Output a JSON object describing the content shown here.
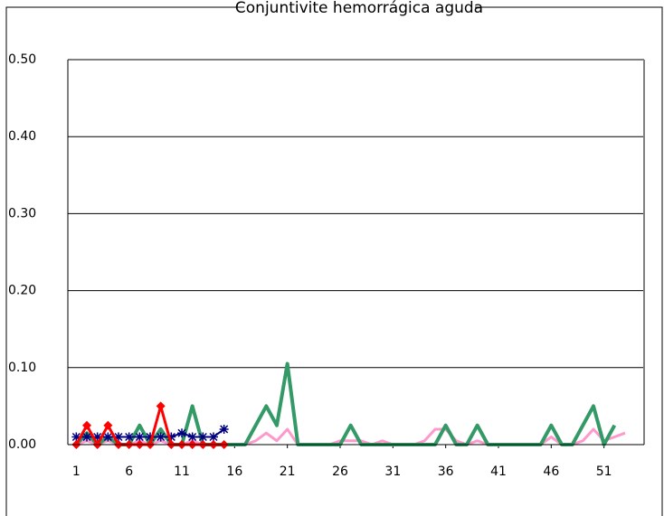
{
  "chart_data": {
    "type": "line",
    "title": "Conjuntivite hemorrágica aguda",
    "x": [
      1,
      2,
      3,
      4,
      5,
      6,
      7,
      8,
      9,
      10,
      11,
      12,
      13,
      14,
      15,
      16,
      17,
      18,
      19,
      20,
      21,
      22,
      23,
      24,
      25,
      26,
      27,
      28,
      29,
      30,
      31,
      32,
      33,
      34,
      35,
      36,
      37,
      38,
      39,
      40,
      41,
      42,
      43,
      44,
      45,
      46,
      47,
      48,
      49,
      50,
      51,
      52,
      53
    ],
    "xlim": [
      0.2,
      54.8
    ],
    "xticks": [
      1,
      6,
      11,
      16,
      21,
      26,
      31,
      36,
      41,
      46,
      51
    ],
    "ylim": [
      0,
      0.5
    ],
    "yticks": [
      {
        "value": 0,
        "label": "0.00"
      },
      {
        "value": 0.1,
        "label": "0.10"
      },
      {
        "value": 0.2,
        "label": "0.20"
      },
      {
        "value": 0.3,
        "label": "0.30"
      },
      {
        "value": 0.4,
        "label": "0.40"
      },
      {
        "value": 0.5,
        "label": "0.50"
      }
    ],
    "grid": true,
    "series": [
      {
        "color": "#ff99cc",
        "marker": "none",
        "width": 3,
        "values": [
          0,
          0.005,
          0,
          0.005,
          0,
          0,
          0.005,
          0,
          0.005,
          0,
          0,
          0.005,
          0,
          0,
          0,
          0,
          0,
          0.005,
          0.015,
          0.005,
          0.02,
          0,
          0,
          0,
          0,
          0.005,
          0.005,
          0.005,
          0,
          0.005,
          0,
          0,
          0,
          0.005,
          0.02,
          0.02,
          0.005,
          0,
          0.005,
          0,
          0,
          0,
          0,
          0,
          0,
          0.01,
          0,
          0,
          0.005,
          0.02,
          0.005,
          0.01,
          0.015
        ]
      },
      {
        "color": "#339966",
        "marker": "none",
        "width": 4,
        "values": [
          0,
          0.015,
          0,
          0.01,
          0,
          0,
          0.025,
          0,
          0.02,
          0,
          0,
          0.05,
          0,
          0,
          0,
          0,
          0,
          0.025,
          0.05,
          0.025,
          0.105,
          0,
          0,
          0,
          0,
          0,
          0.025,
          0,
          0,
          0,
          0,
          0,
          0,
          0,
          0,
          0.025,
          0,
          0,
          0.025,
          0,
          0,
          0,
          0,
          0,
          0,
          0.025,
          0,
          0,
          0.025,
          0.05,
          0,
          0.025,
          null
        ]
      },
      {
        "color": "#000080",
        "marker": "star",
        "width": 2,
        "values": [
          0.01,
          0.01,
          0.01,
          0.01,
          0.01,
          0.01,
          0.01,
          0.01,
          0.01,
          0.01,
          0.015,
          0.01,
          0.01,
          0.01,
          0.02,
          null,
          null,
          null,
          null,
          null,
          null,
          null,
          null,
          null,
          null,
          null,
          null,
          null,
          null,
          null,
          null,
          null,
          null,
          null,
          null,
          null,
          null,
          null,
          null,
          null,
          null,
          null,
          null,
          null,
          null,
          null,
          null,
          null,
          null,
          null,
          null,
          null,
          null
        ]
      },
      {
        "color": "#ff0000",
        "marker": "diamond",
        "width": 3,
        "values": [
          0,
          0.025,
          0,
          0.025,
          0,
          0,
          0,
          0,
          0.05,
          0,
          0,
          0,
          0,
          0,
          0,
          null,
          null,
          null,
          null,
          null,
          null,
          null,
          null,
          null,
          null,
          null,
          null,
          null,
          null,
          null,
          null,
          null,
          null,
          null,
          null,
          null,
          null,
          null,
          null,
          null,
          null,
          null,
          null,
          null,
          null,
          null,
          null,
          null,
          null,
          null,
          null,
          null,
          null
        ]
      }
    ]
  }
}
